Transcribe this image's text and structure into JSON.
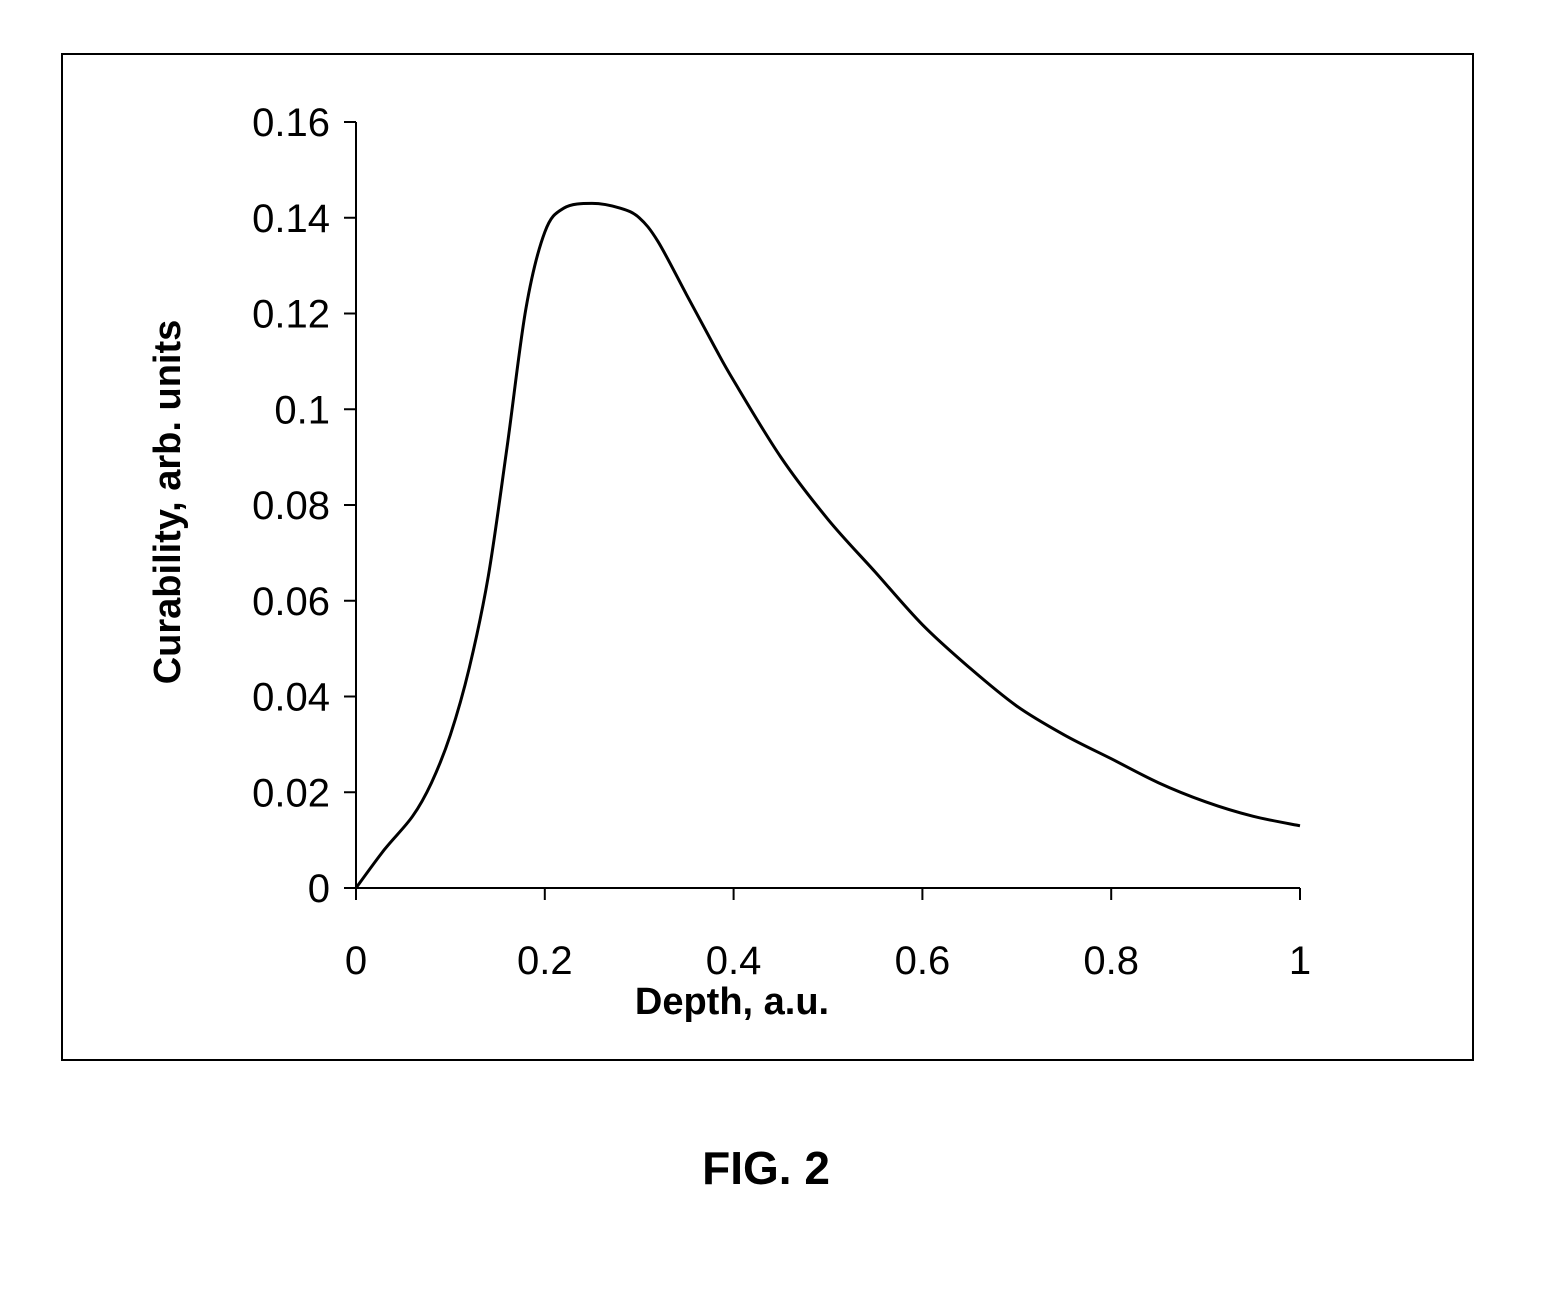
{
  "figure": {
    "caption": "FIG. 2"
  },
  "chart_data": {
    "type": "line",
    "xlabel": "Depth, a.u.",
    "ylabel": "Curability, arb. units",
    "xlim": [
      0,
      1
    ],
    "ylim": [
      0,
      0.16
    ],
    "x_ticks": [
      "0",
      "0.2",
      "0.4",
      "0.6",
      "0.8",
      "1"
    ],
    "y_ticks": [
      "0",
      "0.02",
      "0.04",
      "0.06",
      "0.08",
      "0.1",
      "0.12",
      "0.14",
      "0.16"
    ],
    "grid": false,
    "legend": "none",
    "series": [
      {
        "color": "#000000",
        "x": [
          0,
          0.03,
          0.06,
          0.08,
          0.1,
          0.12,
          0.14,
          0.16,
          0.18,
          0.2,
          0.22,
          0.25,
          0.28,
          0.3,
          0.32,
          0.35,
          0.38,
          0.4,
          0.45,
          0.5,
          0.55,
          0.6,
          0.65,
          0.7,
          0.75,
          0.8,
          0.85,
          0.9,
          0.95,
          1.0
        ],
        "y": [
          0,
          0.008,
          0.015,
          0.022,
          0.032,
          0.046,
          0.065,
          0.092,
          0.121,
          0.137,
          0.142,
          0.143,
          0.142,
          0.14,
          0.135,
          0.124,
          0.113,
          0.106,
          0.09,
          0.077,
          0.066,
          0.055,
          0.046,
          0.038,
          0.032,
          0.027,
          0.022,
          0.018,
          0.015,
          0.013
        ]
      }
    ]
  }
}
